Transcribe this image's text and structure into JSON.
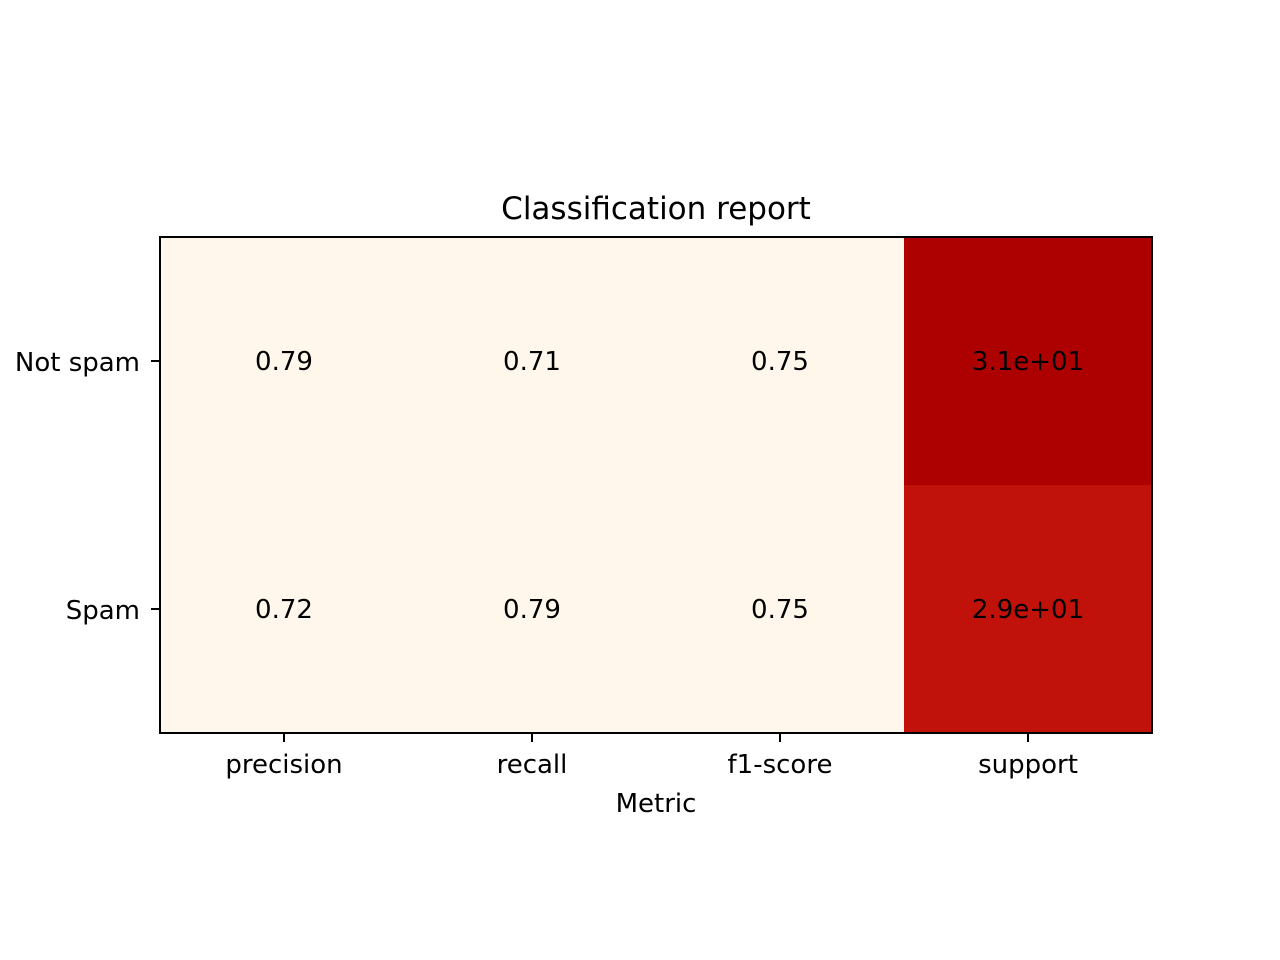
{
  "chart_data": {
    "type": "heatmap",
    "title": "Classification report",
    "xlabel": "Metric",
    "ylabel": "",
    "columns": [
      "precision",
      "recall",
      "f1-score",
      "support"
    ],
    "rows": [
      "Not spam",
      "Spam"
    ],
    "values": [
      [
        0.79,
        0.71,
        0.75,
        31
      ],
      [
        0.72,
        0.79,
        0.75,
        29
      ]
    ],
    "cell_labels": [
      [
        "0.79",
        "0.71",
        "0.75",
        "3.1e+01"
      ],
      [
        "0.72",
        "0.79",
        "0.75",
        "2.9e+01"
      ]
    ],
    "colormap": "OrRd",
    "colorbar": false,
    "grid": false
  }
}
